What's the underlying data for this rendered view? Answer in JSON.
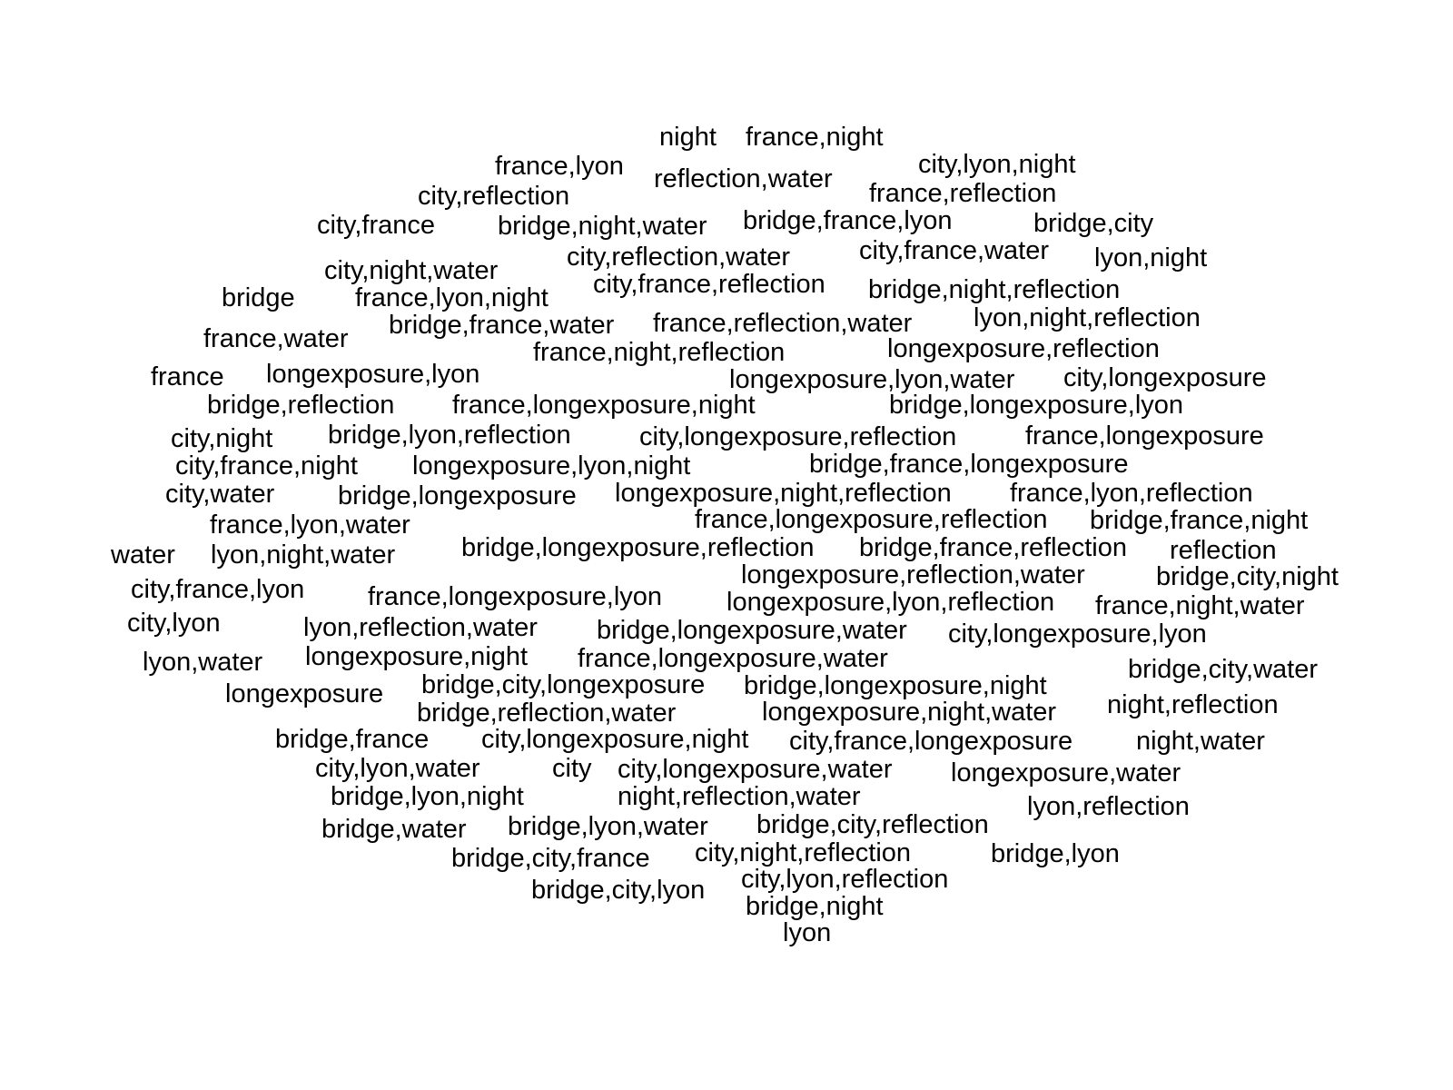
{
  "text_color": "#000000",
  "background_color": "#ffffff",
  "words": [
    "night",
    "france,night",
    "france,lyon",
    "reflection,water",
    "city,lyon,night",
    "city,reflection",
    "france,reflection",
    "city,france",
    "bridge,night,water",
    "bridge,france,lyon",
    "bridge,city",
    "city,reflection,water",
    "city,france,water",
    "lyon,night",
    "city,night,water",
    "city,france,reflection",
    "bridge",
    "france,lyon,night",
    "bridge,night,reflection",
    "france,water",
    "bridge,france,water",
    "france,reflection,water",
    "lyon,night,reflection",
    "france,night,reflection",
    "longexposure,reflection",
    "france",
    "longexposure,lyon",
    "longexposure,lyon,water",
    "city,longexposure",
    "bridge,reflection",
    "france,longexposure,night",
    "bridge,longexposure,lyon",
    "city,night",
    "bridge,lyon,reflection",
    "city,longexposure,reflection",
    "france,longexposure",
    "city,france,night",
    "longexposure,lyon,night",
    "bridge,france,longexposure",
    "city,water",
    "bridge,longexposure",
    "longexposure,night,reflection",
    "france,lyon,reflection",
    "france,lyon,water",
    "france,longexposure,reflection",
    "bridge,france,night",
    "water",
    "lyon,night,water",
    "bridge,longexposure,reflection",
    "bridge,france,reflection",
    "reflection",
    "longexposure,reflection,water",
    "bridge,city,night",
    "city,france,lyon",
    "france,longexposure,lyon",
    "longexposure,lyon,reflection",
    "france,night,water",
    "city,lyon",
    "lyon,reflection,water",
    "bridge,longexposure,water",
    "city,longexposure,lyon",
    "lyon,water",
    "longexposure,night",
    "france,longexposure,water",
    "bridge,city,water",
    "longexposure",
    "bridge,city,longexposure",
    "bridge,longexposure,night",
    "bridge,reflection,water",
    "longexposure,night,water",
    "night,reflection",
    "bridge,france",
    "city,longexposure,night",
    "city,france,longexposure",
    "night,water",
    "city,lyon,water",
    "city",
    "city,longexposure,water",
    "longexposure,water",
    "bridge,lyon,night",
    "night,reflection,water",
    "lyon,reflection",
    "bridge,water",
    "bridge,lyon,water",
    "bridge,city,reflection",
    "bridge,city,france",
    "city,night,reflection",
    "bridge,lyon",
    "bridge,city,lyon",
    "city,lyon,reflection",
    "bridge,night",
    "lyon"
  ]
}
